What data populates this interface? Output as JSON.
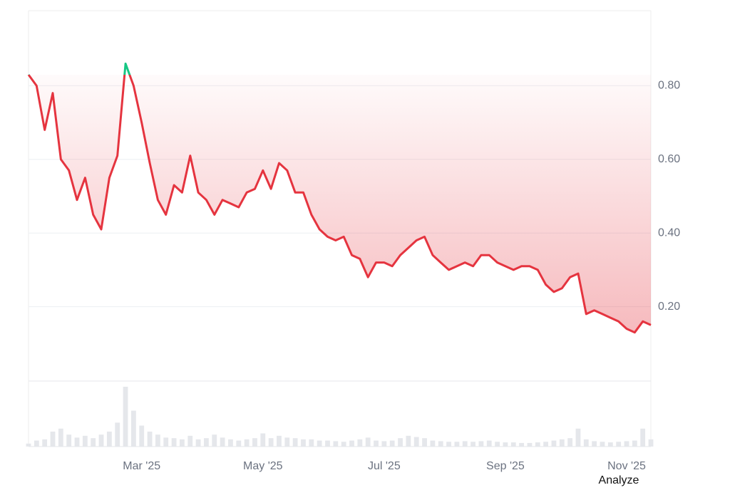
{
  "chart_data": {
    "type": "line",
    "categories": [
      null,
      null,
      null,
      null,
      null,
      null,
      null,
      null,
      null,
      null,
      null,
      null,
      null,
      null,
      "Mar '25",
      null,
      null,
      null,
      null,
      null,
      null,
      null,
      null,
      null,
      null,
      null,
      null,
      null,
      null,
      "May '25",
      null,
      null,
      null,
      null,
      null,
      null,
      null,
      null,
      null,
      null,
      null,
      null,
      null,
      null,
      "Jul '25",
      null,
      null,
      null,
      null,
      null,
      null,
      null,
      null,
      null,
      null,
      null,
      null,
      null,
      null,
      "Sep '25",
      null,
      null,
      null,
      null,
      null,
      null,
      null,
      null,
      null,
      null,
      null,
      null,
      null,
      null,
      "Nov '25",
      null,
      null,
      null
    ],
    "values": [
      0.83,
      0.8,
      0.68,
      0.78,
      0.6,
      0.57,
      0.49,
      0.55,
      0.45,
      0.41,
      0.55,
      0.61,
      0.86,
      0.8,
      0.7,
      0.59,
      0.49,
      0.45,
      0.53,
      0.51,
      0.61,
      0.51,
      0.49,
      0.45,
      0.49,
      0.48,
      0.47,
      0.51,
      0.52,
      0.57,
      0.52,
      0.59,
      0.57,
      0.51,
      0.51,
      0.45,
      0.41,
      0.39,
      0.38,
      0.39,
      0.34,
      0.33,
      0.28,
      0.32,
      0.32,
      0.31,
      0.34,
      0.36,
      0.38,
      0.39,
      0.34,
      0.32,
      0.3,
      0.31,
      0.32,
      0.31,
      0.34,
      0.34,
      0.32,
      0.31,
      0.3,
      0.31,
      0.31,
      0.3,
      0.26,
      0.24,
      0.25,
      0.28,
      0.29,
      0.18,
      0.19,
      0.18,
      0.17,
      0.16,
      0.14,
      0.13,
      0.16,
      0.15
    ],
    "volume": [
      5,
      10,
      12,
      25,
      30,
      20,
      15,
      18,
      14,
      20,
      25,
      40,
      100,
      60,
      35,
      25,
      20,
      15,
      14,
      12,
      18,
      12,
      14,
      20,
      15,
      12,
      10,
      12,
      14,
      22,
      14,
      18,
      15,
      14,
      12,
      12,
      10,
      10,
      9,
      8,
      10,
      12,
      15,
      10,
      9,
      10,
      14,
      18,
      16,
      14,
      10,
      9,
      8,
      8,
      9,
      8,
      9,
      10,
      8,
      7,
      7,
      6,
      6,
      7,
      8,
      10,
      12,
      14,
      30,
      12,
      9,
      8,
      7,
      8,
      9,
      10,
      30,
      12
    ],
    "color": "#e5343f",
    "up_color": "#16c784",
    "ylim": [
      0,
      1.0
    ],
    "yticks": [
      {
        "value": 0.2,
        "label": "0.20"
      },
      {
        "value": 0.4,
        "label": "0.40"
      },
      {
        "value": 0.6,
        "label": "0.60"
      },
      {
        "value": 0.8,
        "label": "0.80"
      }
    ],
    "grid": true
  },
  "action": "Analyze"
}
